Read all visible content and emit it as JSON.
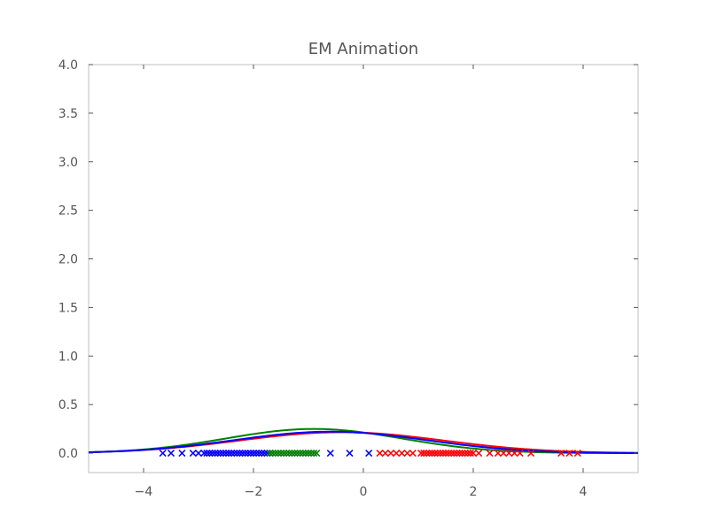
{
  "chart_data": {
    "type": "line",
    "title": "EM Animation",
    "xlabel": "",
    "ylabel": "",
    "xlim": [
      -5,
      5
    ],
    "ylim": [
      -0.2,
      4.0
    ],
    "x_ticks": [
      -4,
      -2,
      0,
      2,
      4
    ],
    "x_tick_labels": [
      "−4",
      "−2",
      "0",
      "2",
      "4"
    ],
    "y_ticks": [
      0.0,
      0.5,
      1.0,
      1.5,
      2.0,
      2.5,
      3.0,
      3.5,
      4.0
    ],
    "y_tick_labels": [
      "0.0",
      "0.5",
      "1.0",
      "1.5",
      "2.0",
      "2.5",
      "3.0",
      "3.5",
      "4.0"
    ],
    "grid": false,
    "series": [
      {
        "color": "#008000",
        "kind": "gaussian",
        "mean": -0.9,
        "std": 1.6,
        "weight": 1.0
      },
      {
        "color": "#ff0000",
        "kind": "gaussian",
        "mean": -0.4,
        "std": 1.85,
        "weight": 1.0
      },
      {
        "color": "#0000ff",
        "kind": "gaussian",
        "mean": -0.6,
        "std": 1.75,
        "weight": 0.97
      }
    ],
    "points": [
      {
        "color": "#0000ff",
        "marker": "x",
        "y": 0,
        "x": [
          -3.65,
          -3.5,
          -3.3,
          -3.1,
          -3.0,
          -2.9,
          -2.85,
          -2.8,
          -2.75,
          -2.7,
          -2.65,
          -2.6,
          -2.55,
          -2.5,
          -2.45,
          -2.4,
          -2.35,
          -2.3,
          -2.25,
          -2.2,
          -2.15,
          -2.1,
          -2.05,
          -2.0,
          -1.95,
          -1.9,
          -1.85,
          -1.8,
          -1.75,
          -1.7,
          -0.6,
          -0.25,
          0.1
        ]
      },
      {
        "color": "#008000",
        "marker": "x",
        "y": 0,
        "x": [
          -1.7,
          -1.65,
          -1.6,
          -1.55,
          -1.5,
          -1.45,
          -1.4,
          -1.35,
          -1.3,
          -1.25,
          -1.2,
          -1.15,
          -1.1,
          -1.05,
          -1.0,
          -0.95,
          -0.9,
          -0.85
        ]
      },
      {
        "color": "#ff0000",
        "marker": "x",
        "y": 0,
        "x": [
          0.3,
          0.4,
          0.5,
          0.6,
          0.7,
          0.8,
          0.9,
          1.05,
          1.1,
          1.15,
          1.2,
          1.25,
          1.3,
          1.35,
          1.4,
          1.45,
          1.5,
          1.55,
          1.6,
          1.65,
          1.7,
          1.75,
          1.8,
          1.85,
          1.9,
          1.95,
          2.0,
          2.1,
          2.3,
          2.45,
          2.55,
          2.65,
          2.75,
          2.85,
          3.05,
          3.6,
          3.75,
          3.9
        ]
      }
    ]
  }
}
